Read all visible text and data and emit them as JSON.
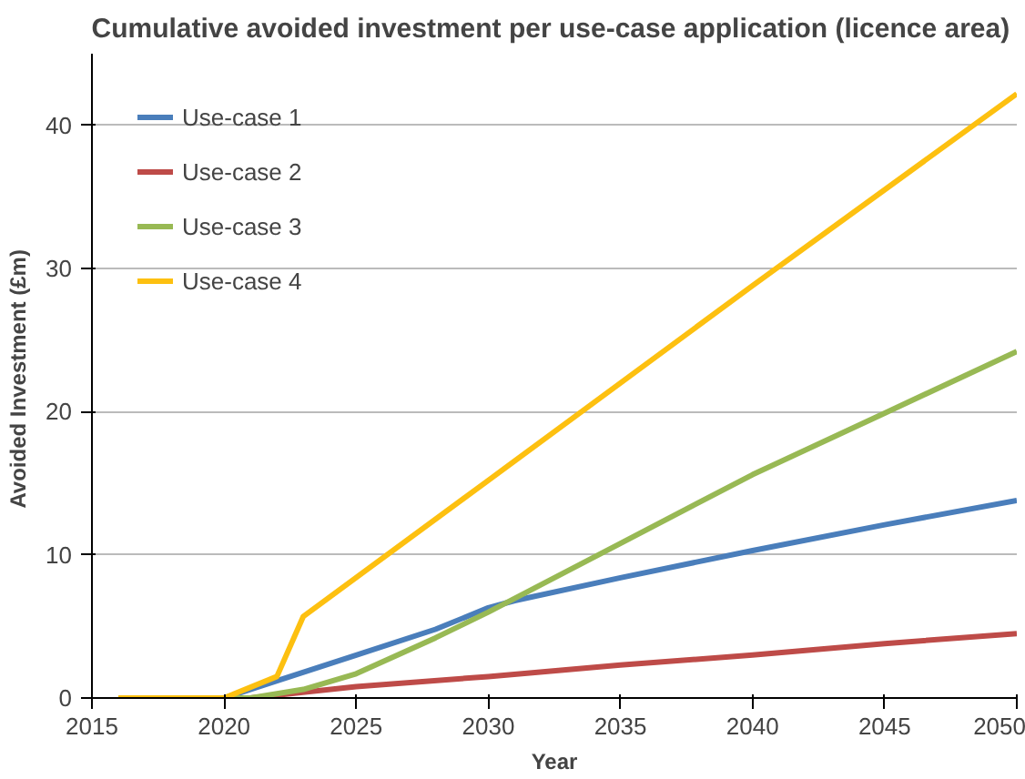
{
  "chart_data": {
    "type": "line",
    "title": "Cumulative avoided investment per use-case application  (licence area)",
    "xlabel": "Year",
    "ylabel": "Avoided Investment  (£m)",
    "xlim": [
      2015,
      2050
    ],
    "xticks": [
      2015,
      2020,
      2025,
      2030,
      2035,
      2040,
      2045,
      2050
    ],
    "ylim": [
      0,
      45
    ],
    "yticks": [
      0,
      10,
      20,
      30,
      40
    ],
    "grid": "y",
    "legend": "top left",
    "marker": "none",
    "line_style": "solid",
    "series": [
      {
        "name": "Use-case 1",
        "color": "#4a7ebb",
        "x": [
          2016,
          2020,
          2022,
          2025,
          2028,
          2030,
          2031,
          2035,
          2040,
          2045,
          2050
        ],
        "values": [
          0,
          0,
          1.2,
          3.0,
          4.8,
          6.3,
          6.8,
          8.4,
          10.3,
          12.1,
          13.8
        ]
      },
      {
        "name": "Use-case 2",
        "color": "#be4b48",
        "x": [
          2016,
          2021,
          2025,
          2030,
          2035,
          2040,
          2045,
          2050
        ],
        "values": [
          0,
          0,
          0.8,
          1.5,
          2.3,
          3.0,
          3.8,
          4.5
        ]
      },
      {
        "name": "Use-case 3",
        "color": "#98b954",
        "x": [
          2016,
          2021,
          2023,
          2025,
          2028,
          2030,
          2035,
          2040,
          2045,
          2050
        ],
        "values": [
          0,
          0,
          0.6,
          1.7,
          4.2,
          6.0,
          10.8,
          15.6,
          19.9,
          24.2
        ]
      },
      {
        "name": "Use-case 4",
        "color": "#fdc010",
        "x": [
          2016,
          2020,
          2022,
          2023,
          2030,
          2035,
          2040,
          2045,
          2050
        ],
        "values": [
          0,
          0,
          1.5,
          5.7,
          15.2,
          22.0,
          28.8,
          35.5,
          42.2
        ]
      }
    ]
  }
}
